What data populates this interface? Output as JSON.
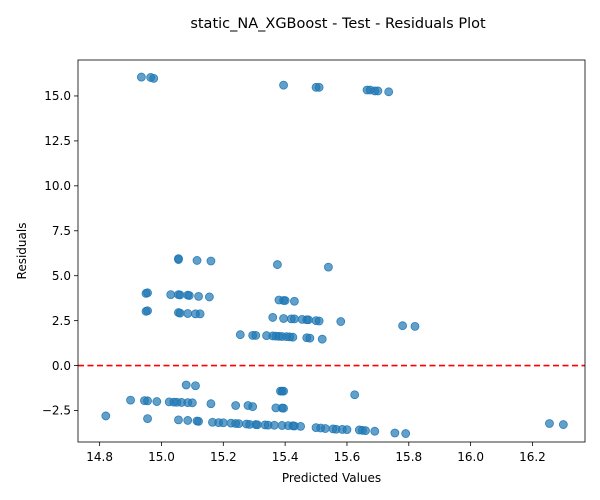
{
  "chart_data": {
    "type": "scatter",
    "title": "static_NA_XGBoost - Test - Residuals Plot",
    "xlabel": "Predicted Values",
    "ylabel": "Residuals",
    "xlim": [
      14.73,
      16.37
    ],
    "ylim": [
      -4.25,
      17.0
    ],
    "xticks": [
      14.8,
      15.0,
      15.2,
      15.4,
      15.6,
      15.8,
      16.0,
      16.2
    ],
    "xtick_labels": [
      "14.8",
      "15.0",
      "15.2",
      "15.4",
      "15.6",
      "15.8",
      "16.0",
      "16.2"
    ],
    "yticks": [
      -2.5,
      0.0,
      2.5,
      5.0,
      7.5,
      10.0,
      12.5,
      15.0
    ],
    "ytick_labels": [
      "−2.5",
      "0.0",
      "2.5",
      "5.0",
      "7.5",
      "10.0",
      "12.5",
      "15.0"
    ],
    "grid": false,
    "reference_line": {
      "y": 0.0,
      "style": "dashed",
      "color": "#ff0000"
    },
    "marker_color": "#1f77b4",
    "marker_alpha": 0.7,
    "points": [
      [
        14.935,
        16.05
      ],
      [
        14.965,
        16.03
      ],
      [
        14.975,
        15.98
      ],
      [
        15.395,
        15.6
      ],
      [
        15.5,
        15.48
      ],
      [
        15.51,
        15.48
      ],
      [
        15.665,
        15.33
      ],
      [
        15.675,
        15.33
      ],
      [
        15.69,
        15.28
      ],
      [
        15.7,
        15.28
      ],
      [
        15.735,
        15.23
      ],
      [
        15.055,
        5.95
      ],
      [
        15.055,
        5.9
      ],
      [
        15.115,
        5.85
      ],
      [
        15.16,
        5.82
      ],
      [
        15.375,
        5.62
      ],
      [
        15.54,
        5.48
      ],
      [
        14.955,
        4.05
      ],
      [
        14.95,
        4.02
      ],
      [
        15.03,
        3.95
      ],
      [
        15.055,
        3.95
      ],
      [
        15.06,
        3.93
      ],
      [
        15.085,
        3.92
      ],
      [
        15.09,
        3.9
      ],
      [
        15.12,
        3.85
      ],
      [
        15.155,
        3.82
      ],
      [
        15.38,
        3.65
      ],
      [
        15.395,
        3.62
      ],
      [
        15.4,
        3.62
      ],
      [
        15.43,
        3.58
      ],
      [
        14.955,
        3.05
      ],
      [
        14.95,
        3.02
      ],
      [
        15.055,
        2.95
      ],
      [
        15.06,
        2.92
      ],
      [
        15.085,
        2.9
      ],
      [
        15.11,
        2.88
      ],
      [
        15.125,
        2.88
      ],
      [
        15.36,
        2.68
      ],
      [
        15.395,
        2.62
      ],
      [
        15.42,
        2.6
      ],
      [
        15.43,
        2.6
      ],
      [
        15.455,
        2.57
      ],
      [
        15.47,
        2.55
      ],
      [
        15.475,
        2.55
      ],
      [
        15.5,
        2.5
      ],
      [
        15.51,
        2.48
      ],
      [
        15.58,
        2.45
      ],
      [
        15.78,
        2.22
      ],
      [
        15.82,
        2.18
      ],
      [
        15.255,
        1.72
      ],
      [
        15.295,
        1.68
      ],
      [
        15.305,
        1.68
      ],
      [
        15.34,
        1.67
      ],
      [
        15.36,
        1.65
      ],
      [
        15.37,
        1.64
      ],
      [
        15.38,
        1.63
      ],
      [
        15.39,
        1.62
      ],
      [
        15.405,
        1.61
      ],
      [
        15.415,
        1.6
      ],
      [
        15.425,
        1.58
      ],
      [
        15.47,
        1.55
      ],
      [
        15.48,
        1.53
      ],
      [
        15.52,
        1.47
      ],
      [
        15.08,
        -1.08
      ],
      [
        15.11,
        -1.12
      ],
      [
        15.385,
        -1.42
      ],
      [
        15.39,
        -1.42
      ],
      [
        15.395,
        -1.42
      ],
      [
        15.625,
        -1.62
      ],
      [
        14.9,
        -1.92
      ],
      [
        14.945,
        -1.95
      ],
      [
        14.955,
        -1.96
      ],
      [
        14.985,
        -2.0
      ],
      [
        15.025,
        -2.02
      ],
      [
        15.04,
        -2.03
      ],
      [
        15.05,
        -2.04
      ],
      [
        15.065,
        -2.05
      ],
      [
        15.085,
        -2.06
      ],
      [
        15.1,
        -2.07
      ],
      [
        15.16,
        -2.12
      ],
      [
        15.24,
        -2.22
      ],
      [
        15.28,
        -2.22
      ],
      [
        15.295,
        -2.28
      ],
      [
        15.37,
        -2.35
      ],
      [
        15.39,
        -2.36
      ],
      [
        15.395,
        -2.37
      ],
      [
        14.82,
        -2.8
      ],
      [
        14.955,
        -2.95
      ],
      [
        15.055,
        -3.02
      ],
      [
        15.085,
        -3.05
      ],
      [
        15.115,
        -3.08
      ],
      [
        15.12,
        -3.1
      ],
      [
        15.165,
        -3.15
      ],
      [
        15.185,
        -3.17
      ],
      [
        15.2,
        -3.18
      ],
      [
        15.225,
        -3.2
      ],
      [
        15.24,
        -3.22
      ],
      [
        15.25,
        -3.23
      ],
      [
        15.275,
        -3.25
      ],
      [
        15.285,
        -3.27
      ],
      [
        15.305,
        -3.28
      ],
      [
        15.31,
        -3.29
      ],
      [
        15.335,
        -3.3
      ],
      [
        15.345,
        -3.31
      ],
      [
        15.365,
        -3.32
      ],
      [
        15.39,
        -3.33
      ],
      [
        15.41,
        -3.34
      ],
      [
        15.425,
        -3.35
      ],
      [
        15.43,
        -3.36
      ],
      [
        15.45,
        -3.38
      ],
      [
        15.5,
        -3.45
      ],
      [
        15.515,
        -3.47
      ],
      [
        15.53,
        -3.5
      ],
      [
        15.555,
        -3.52
      ],
      [
        15.565,
        -3.54
      ],
      [
        15.585,
        -3.55
      ],
      [
        15.6,
        -3.56
      ],
      [
        15.64,
        -3.58
      ],
      [
        15.65,
        -3.6
      ],
      [
        15.66,
        -3.62
      ],
      [
        15.69,
        -3.65
      ],
      [
        15.755,
        -3.75
      ],
      [
        15.79,
        -3.78
      ],
      [
        16.255,
        -3.22
      ],
      [
        16.3,
        -3.28
      ]
    ]
  }
}
